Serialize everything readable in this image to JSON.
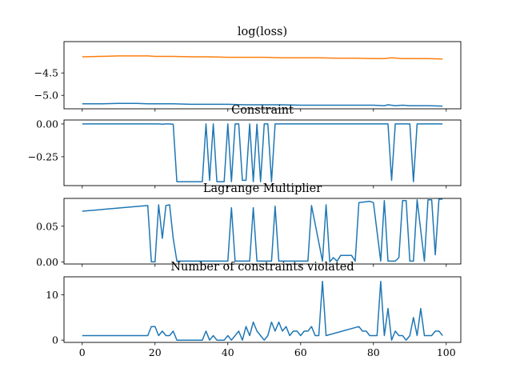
{
  "chart_data": [
    {
      "type": "line",
      "title": "log(loss)",
      "xlabel": "",
      "ylabel": "",
      "xlim": [
        -5,
        104
      ],
      "ylim": [
        -5.3,
        -3.8
      ],
      "xticks": [
        0,
        20,
        40,
        60,
        80,
        100
      ],
      "xtick_labels_visible": false,
      "yticks": [
        -4.5,
        -5.0
      ],
      "ytick_labels": [
        "−4.5",
        "−5.0"
      ],
      "grid": false,
      "series": [
        {
          "color": "#ff7f0e",
          "x": [
            0,
            5,
            10,
            15,
            18,
            20,
            25,
            30,
            35,
            40,
            45,
            50,
            55,
            60,
            65,
            70,
            75,
            80,
            83,
            85,
            88,
            90,
            95,
            99
          ],
          "values": [
            -4.14,
            -4.13,
            -4.12,
            -4.12,
            -4.12,
            -4.13,
            -4.13,
            -4.14,
            -4.14,
            -4.15,
            -4.15,
            -4.15,
            -4.16,
            -4.16,
            -4.16,
            -4.17,
            -4.17,
            -4.18,
            -4.18,
            -4.16,
            -4.18,
            -4.18,
            -4.18,
            -4.19
          ]
        },
        {
          "color": "#1f77b4",
          "x": [
            0,
            5,
            10,
            15,
            18,
            20,
            25,
            30,
            35,
            40,
            45,
            50,
            55,
            60,
            65,
            70,
            75,
            80,
            83,
            84,
            86,
            88,
            90,
            95,
            99
          ],
          "values": [
            -5.19,
            -5.19,
            -5.18,
            -5.18,
            -5.19,
            -5.19,
            -5.19,
            -5.2,
            -5.2,
            -5.2,
            -5.21,
            -5.21,
            -5.21,
            -5.22,
            -5.22,
            -5.22,
            -5.22,
            -5.22,
            -5.23,
            -5.21,
            -5.23,
            -5.22,
            -5.23,
            -5.23,
            -5.24
          ]
        }
      ]
    },
    {
      "type": "line",
      "title": "Constraint",
      "xlabel": "",
      "ylabel": "",
      "xlim": [
        -5,
        104
      ],
      "ylim": [
        -0.47,
        0.03
      ],
      "xticks": [
        0,
        20,
        40,
        60,
        80,
        100
      ],
      "xtick_labels_visible": false,
      "yticks": [
        0.0,
        -0.25
      ],
      "ytick_labels": [
        "0.00",
        "−0.25"
      ],
      "grid": false,
      "series": [
        {
          "color": "#1f77b4",
          "x": [
            0,
            21,
            22,
            23,
            24,
            25,
            26,
            33,
            34,
            35,
            36,
            37,
            38,
            39,
            40,
            41,
            42,
            43,
            44,
            45,
            46,
            47,
            48,
            49,
            50,
            51,
            52,
            53,
            54,
            84,
            85,
            86,
            87,
            88,
            89,
            90,
            91,
            92,
            99
          ],
          "values": [
            0,
            0,
            -0.002,
            0,
            0,
            -0.003,
            -0.44,
            -0.44,
            0,
            -0.43,
            0,
            -0.44,
            -0.44,
            -0.44,
            0,
            -0.44,
            0,
            0,
            -0.43,
            -0.43,
            0,
            -0.44,
            -0.002,
            -0.44,
            0,
            0,
            -0.44,
            0,
            0,
            0,
            -0.43,
            0,
            0,
            0,
            0,
            0,
            -0.44,
            0,
            0
          ]
        }
      ]
    },
    {
      "type": "line",
      "title": "Lagrange Multiplier",
      "xlabel": "",
      "ylabel": "",
      "xlim": [
        -5,
        104
      ],
      "ylim": [
        -0.003,
        0.089
      ],
      "xticks": [
        0,
        20,
        40,
        60,
        80,
        100
      ],
      "xtick_labels_visible": false,
      "yticks": [
        0.05,
        0.0
      ],
      "ytick_labels": [
        "0.05",
        "0.00"
      ],
      "grid": false,
      "series": [
        {
          "color": "#1f77b4",
          "x": [
            0,
            18,
            19,
            20,
            21,
            22,
            23,
            24,
            25,
            26,
            40,
            41,
            42,
            46,
            47,
            48,
            52,
            53,
            54,
            62,
            63,
            66,
            67,
            68,
            69,
            70,
            71,
            74,
            75,
            76,
            79,
            80,
            82,
            83,
            84,
            86,
            87,
            88,
            89,
            90,
            91,
            92,
            94,
            95,
            96,
            97,
            98,
            99
          ],
          "values": [
            0.071,
            0.079,
            0.0,
            0.0,
            0.08,
            0.033,
            0.079,
            0.08,
            0.033,
            0.001,
            0.001,
            0.076,
            0.001,
            0.001,
            0.076,
            0.001,
            0.001,
            0.078,
            0.001,
            0.001,
            0.079,
            0.001,
            0.08,
            0.0,
            0.006,
            0.001,
            0.009,
            0.009,
            0.001,
            0.083,
            0.085,
            0.083,
            0.001,
            0.086,
            0.001,
            0.001,
            0.006,
            0.086,
            0.086,
            0.001,
            0.001,
            0.087,
            0.001,
            0.087,
            0.087,
            0.01,
            0.088,
            0.088
          ]
        }
      ]
    },
    {
      "type": "line",
      "title": "Number of constraints violated",
      "xlabel": "",
      "ylabel": "",
      "xlim": [
        -5,
        104
      ],
      "ylim": [
        -0.5,
        14.0
      ],
      "xticks": [
        0,
        20,
        40,
        60,
        80,
        100
      ],
      "xtick_labels": [
        "0",
        "20",
        "40",
        "60",
        "80",
        "100"
      ],
      "yticks": [
        10,
        0
      ],
      "ytick_labels": [
        "10",
        "0"
      ],
      "grid": false,
      "series": [
        {
          "color": "#1f77b4",
          "x": [
            0,
            18,
            19,
            20,
            21,
            22,
            23,
            24,
            25,
            26,
            33,
            34,
            35,
            36,
            37,
            38,
            39,
            40,
            41,
            42,
            43,
            44,
            45,
            46,
            47,
            48,
            49,
            50,
            51,
            52,
            53,
            54,
            55,
            56,
            57,
            58,
            59,
            60,
            61,
            62,
            63,
            64,
            65,
            66,
            67,
            76,
            77,
            78,
            79,
            80,
            81,
            82,
            83,
            84,
            85,
            86,
            87,
            88,
            89,
            90,
            91,
            92,
            93,
            94,
            95,
            96,
            97,
            98,
            99
          ],
          "values": [
            1,
            1,
            3,
            3,
            1,
            2,
            1,
            1,
            2,
            0,
            0,
            2,
            0,
            1,
            0,
            0,
            0,
            1,
            0,
            1,
            2,
            0,
            3,
            1,
            4,
            2,
            1,
            0,
            1,
            4,
            2,
            4,
            2,
            3,
            1,
            2,
            2,
            1,
            2,
            2,
            3,
            1,
            1,
            13,
            1,
            3,
            2,
            2,
            1,
            1,
            1,
            13,
            1,
            7,
            0,
            2,
            1,
            1,
            0,
            1,
            5,
            1,
            7,
            1,
            1,
            1,
            2,
            2,
            1
          ]
        }
      ]
    }
  ]
}
